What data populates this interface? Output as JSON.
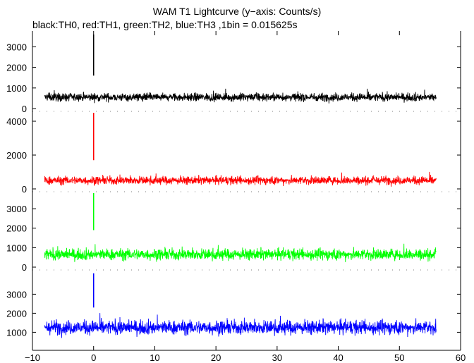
{
  "chart_data": {
    "type": "line",
    "title": "WAM T1 Lightcurve (y−axis: Counts/s)",
    "subtitle": "black:TH0, red:TH1, green:TH2, blue:TH3 ,1bin = 0.015625s",
    "xlabel": "",
    "ylabel": "",
    "x_ticks": [
      "−10",
      "0",
      "10",
      "20",
      "30",
      "40",
      "50",
      "60"
    ],
    "x_tick_values": [
      -10,
      0,
      10,
      20,
      30,
      40,
      50,
      60
    ],
    "xlim": [
      -10,
      60
    ],
    "data_x_range": [
      -8,
      56
    ],
    "grid": false,
    "panels": [
      {
        "name": "TH0",
        "color": "#000000",
        "ylim": [
          0,
          3700
        ],
        "y_ticks": [
          {
            "value": 0,
            "label": "0"
          },
          {
            "value": 1000,
            "label": "1000"
          },
          {
            "value": 2000,
            "label": "2000"
          },
          {
            "value": 3000,
            "label": "3000"
          }
        ],
        "baseline": 550,
        "noise_amplitude": 180,
        "spike": {
          "x": 0,
          "y_min": 1600,
          "y_max": 3600
        }
      },
      {
        "name": "TH1",
        "color": "#ff0000",
        "ylim": [
          0,
          4500
        ],
        "y_ticks": [
          {
            "value": 0,
            "label": "0"
          },
          {
            "value": 2000,
            "label": "2000"
          },
          {
            "value": 4000,
            "label": "4000"
          }
        ],
        "baseline": 500,
        "noise_amplitude": 220,
        "spike": {
          "x": 0,
          "y_min": 1700,
          "y_max": 4500
        }
      },
      {
        "name": "TH2",
        "color": "#00ff00",
        "ylim": [
          0,
          3800
        ],
        "y_ticks": [
          {
            "value": 0,
            "label": "0"
          },
          {
            "value": 1000,
            "label": "1000"
          },
          {
            "value": 2000,
            "label": "2000"
          },
          {
            "value": 3000,
            "label": "3000"
          }
        ],
        "baseline": 650,
        "noise_amplitude": 260,
        "spike": {
          "x": 0,
          "y_min": 1900,
          "y_max": 3800
        }
      },
      {
        "name": "TH3",
        "color": "#0000ff",
        "ylim": [
          200,
          4200
        ],
        "y_ticks": [
          {
            "value": 1000,
            "label": "1000"
          },
          {
            "value": 2000,
            "label": "2000"
          },
          {
            "value": 3000,
            "label": "3000"
          }
        ],
        "baseline": 1250,
        "noise_amplitude": 330,
        "spike": {
          "x": 0,
          "y_min": 2300,
          "y_max": 4100
        }
      }
    ]
  }
}
